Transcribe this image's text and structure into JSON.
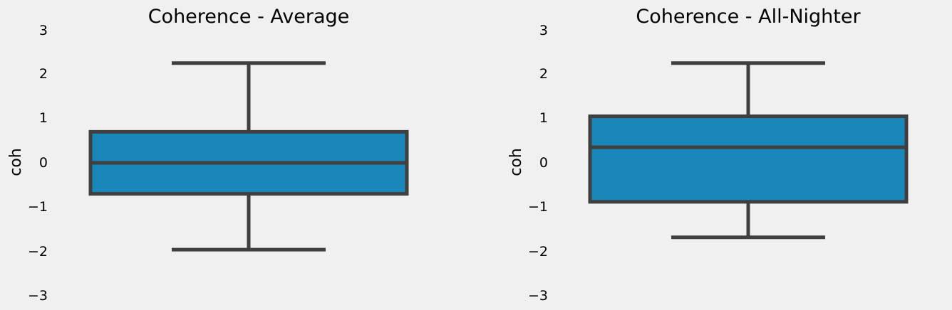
{
  "colors": {
    "background": "#f0f0f0",
    "box_fill": "#1a87bb",
    "line": "#3f3f3f",
    "text": "#000000"
  },
  "chart_data": [
    {
      "type": "box",
      "title": "Coherence - Average",
      "xlabel": "",
      "ylabel": "coh",
      "ylim": [
        -3,
        3
      ],
      "yticks": [
        3,
        2,
        1,
        0,
        -1,
        -2,
        -3
      ],
      "ytick_labels": [
        "3",
        "2",
        "1",
        "0",
        "−1",
        "−2",
        "−3"
      ],
      "grid": false,
      "box": {
        "whisker_low": -1.96,
        "q1": -0.7,
        "median": 0.0,
        "q3": 0.7,
        "whisker_high": 2.25
      }
    },
    {
      "type": "box",
      "title": "Coherence - All-Nighter",
      "xlabel": "",
      "ylabel": "coh",
      "ylim": [
        -3,
        3
      ],
      "yticks": [
        3,
        2,
        1,
        0,
        -1,
        -2,
        -3
      ],
      "ytick_labels": [
        "3",
        "2",
        "1",
        "0",
        "−1",
        "−2",
        "−3"
      ],
      "grid": false,
      "box": {
        "whisker_low": -1.68,
        "q1": -0.88,
        "median": 0.35,
        "q3": 1.05,
        "whisker_high": 2.25
      }
    }
  ]
}
